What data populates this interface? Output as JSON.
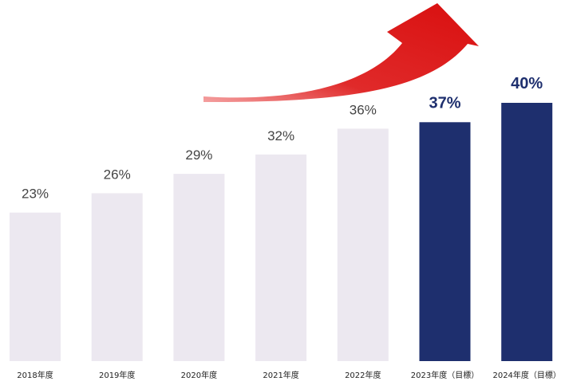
{
  "chart_data": {
    "type": "bar",
    "categories": [
      "2018年度",
      "2019年度",
      "2020年度",
      "2021年度",
      "2022年度",
      "2023年度（目標）",
      "2024年度（目標）"
    ],
    "values": [
      23,
      26,
      29,
      32,
      36,
      37,
      40
    ],
    "value_labels": [
      "23%",
      "26%",
      "29%",
      "32%",
      "36%",
      "37%",
      "40%"
    ],
    "highlight": [
      false,
      false,
      false,
      false,
      false,
      true,
      true
    ],
    "ylim": [
      0,
      40
    ],
    "grid": false,
    "legend": "none",
    "trend_arrow": true,
    "colors": {
      "actual_bar": "#ece8f0",
      "target_bar": "#1e2f6e",
      "actual_label": "#444444",
      "target_label": "#1e2f6e",
      "tick": "#222222",
      "arrow": "#e01515"
    }
  }
}
